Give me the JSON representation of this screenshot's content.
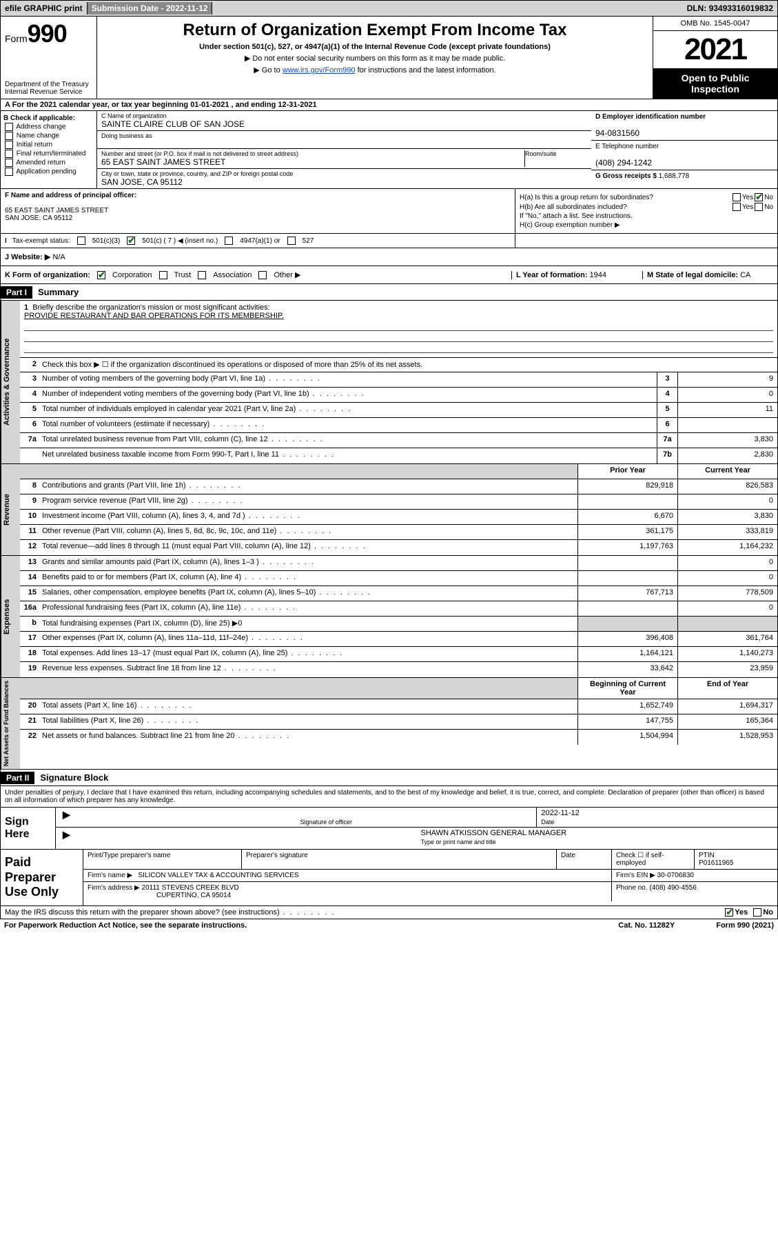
{
  "topbar": {
    "efile": "efile GRAPHIC print",
    "sub_label": "Submission Date - ",
    "sub_date": "2022-11-12",
    "dln_label": "DLN: ",
    "dln": "93493316019832"
  },
  "header": {
    "form_prefix": "Form",
    "form_num": "990",
    "dept": "Department of the Treasury\nInternal Revenue Service",
    "title": "Return of Organization Exempt From Income Tax",
    "sub1": "Under section 501(c), 527, or 4947(a)(1) of the Internal Revenue Code (except private foundations)",
    "sub2": "▶ Do not enter social security numbers on this form as it may be made public.",
    "sub3_pre": "▶ Go to ",
    "sub3_link": "www.irs.gov/Form990",
    "sub3_post": " for instructions and the latest information.",
    "omb": "OMB No. 1545-0047",
    "year": "2021",
    "otp": "Open to Public Inspection"
  },
  "line_a": "A For the 2021 calendar year, or tax year beginning 01-01-2021   , and ending 12-31-2021",
  "col_b": {
    "title": "B Check if applicable:",
    "items": [
      "Address change",
      "Name change",
      "Initial return",
      "Final return/terminated",
      "Amended return",
      "Application pending"
    ]
  },
  "box_c": {
    "label": "C Name of organization",
    "name": "SAINTE CLAIRE CLUB OF SAN JOSE",
    "dba_label": "Doing business as",
    "addr_label": "Number and street (or P.O. box if mail is not delivered to street address)",
    "room_label": "Room/suite",
    "addr": "65 EAST SAINT JAMES STREET",
    "city_label": "City or town, state or province, country, and ZIP or foreign postal code",
    "city": "SAN JOSE, CA  95112"
  },
  "box_d": {
    "label": "D Employer identification number",
    "val": "94-0831560"
  },
  "box_e": {
    "label": "E Telephone number",
    "val": "(408) 294-1242"
  },
  "box_g": {
    "label": "G Gross receipts $ ",
    "val": "1,688,778"
  },
  "box_f": {
    "label": "F Name and address of principal officer:",
    "line1": "65 EAST SAINT JAMES STREET",
    "line2": "SAN JOSE, CA  95112"
  },
  "box_h": {
    "a_label": "H(a)  Is this a group return for subordinates?",
    "b_label": "H(b)  Are all subordinates included?",
    "b_note": "If \"No,\" attach a list. See instructions.",
    "c_label": "H(c)  Group exemption number ▶",
    "yes": "Yes",
    "no": "No"
  },
  "row_i": {
    "label": "Tax-exempt status:",
    "opts": [
      "501(c)(3)",
      "501(c) ( 7 ) ◀ (insert no.)",
      "4947(a)(1) or",
      "527"
    ]
  },
  "row_j": {
    "label": "J   Website: ▶",
    "val": "N/A"
  },
  "row_k": {
    "label": "K Form of organization:",
    "opts": [
      "Corporation",
      "Trust",
      "Association",
      "Other ▶"
    ]
  },
  "row_l": {
    "label": "L Year of formation: ",
    "val": "1944"
  },
  "row_m": {
    "label": "M State of legal domicile: ",
    "val": "CA"
  },
  "part1": {
    "hdr": "Part I",
    "title": "Summary"
  },
  "briefly": {
    "num": "1",
    "label": "Briefly describe the organization's mission or most significant activities:",
    "text": "PROVIDE RESTAURANT AND BAR OPERATIONS FOR ITS MEMBERSHIP."
  },
  "line2": "Check this box ▶ ☐  if the organization discontinued its operations or disposed of more than 25% of its net assets.",
  "act_rows": [
    {
      "n": "3",
      "d": "Number of voting members of the governing body (Part VI, line 1a)",
      "box": "3",
      "v": "9"
    },
    {
      "n": "4",
      "d": "Number of independent voting members of the governing body (Part VI, line 1b)",
      "box": "4",
      "v": "0"
    },
    {
      "n": "5",
      "d": "Total number of individuals employed in calendar year 2021 (Part V, line 2a)",
      "box": "5",
      "v": "11"
    },
    {
      "n": "6",
      "d": "Total number of volunteers (estimate if necessary)",
      "box": "6",
      "v": ""
    },
    {
      "n": "7a",
      "d": "Total unrelated business revenue from Part VIII, column (C), line 12",
      "box": "7a",
      "v": "3,830"
    },
    {
      "n": "",
      "d": "Net unrelated business taxable income from Form 990-T, Part I, line 11",
      "box": "7b",
      "v": "2,830"
    }
  ],
  "col_hdrs": {
    "prior": "Prior Year",
    "current": "Current Year",
    "boy": "Beginning of Current Year",
    "eoy": "End of Year"
  },
  "rev_rows": [
    {
      "n": "8",
      "d": "Contributions and grants (Part VIII, line 1h)",
      "p": "829,918",
      "c": "826,583"
    },
    {
      "n": "9",
      "d": "Program service revenue (Part VIII, line 2g)",
      "p": "",
      "c": "0"
    },
    {
      "n": "10",
      "d": "Investment income (Part VIII, column (A), lines 3, 4, and 7d )",
      "p": "6,670",
      "c": "3,830"
    },
    {
      "n": "11",
      "d": "Other revenue (Part VIII, column (A), lines 5, 6d, 8c, 9c, 10c, and 11e)",
      "p": "361,175",
      "c": "333,819"
    },
    {
      "n": "12",
      "d": "Total revenue—add lines 8 through 11 (must equal Part VIII, column (A), line 12)",
      "p": "1,197,763",
      "c": "1,164,232"
    }
  ],
  "exp_rows": [
    {
      "n": "13",
      "d": "Grants and similar amounts paid (Part IX, column (A), lines 1–3 )",
      "p": "",
      "c": "0"
    },
    {
      "n": "14",
      "d": "Benefits paid to or for members (Part IX, column (A), line 4)",
      "p": "",
      "c": "0"
    },
    {
      "n": "15",
      "d": "Salaries, other compensation, employee benefits (Part IX, column (A), lines 5–10)",
      "p": "767,713",
      "c": "778,509"
    },
    {
      "n": "16a",
      "d": "Professional fundraising fees (Part IX, column (A), line 11e)",
      "p": "",
      "c": "0"
    },
    {
      "n": "b",
      "d": "Total fundraising expenses (Part IX, column (D), line 25) ▶0",
      "p": null,
      "c": null
    },
    {
      "n": "17",
      "d": "Other expenses (Part IX, column (A), lines 11a–11d, 11f–24e)",
      "p": "396,408",
      "c": "361,764"
    },
    {
      "n": "18",
      "d": "Total expenses. Add lines 13–17 (must equal Part IX, column (A), line 25)",
      "p": "1,164,121",
      "c": "1,140,273"
    },
    {
      "n": "19",
      "d": "Revenue less expenses. Subtract line 18 from line 12",
      "p": "33,642",
      "c": "23,959"
    }
  ],
  "net_rows": [
    {
      "n": "20",
      "d": "Total assets (Part X, line 16)",
      "p": "1,652,749",
      "c": "1,694,317"
    },
    {
      "n": "21",
      "d": "Total liabilities (Part X, line 26)",
      "p": "147,755",
      "c": "165,364"
    },
    {
      "n": "22",
      "d": "Net assets or fund balances. Subtract line 21 from line 20",
      "p": "1,504,994",
      "c": "1,528,953"
    }
  ],
  "vtabs": {
    "act": "Activities & Governance",
    "rev": "Revenue",
    "exp": "Expenses",
    "net": "Net Assets or Fund Balances"
  },
  "part2": {
    "hdr": "Part II",
    "title": "Signature Block"
  },
  "sig": {
    "decl": "Under penalties of perjury, I declare that I have examined this return, including accompanying schedules and statements, and to the best of my knowledge and belief, it is true, correct, and complete. Declaration of preparer (other than officer) is based on all information of which preparer has any knowledge.",
    "sign_here": "Sign Here",
    "sig_officer": "Signature of officer",
    "date": "Date",
    "date_val": "2022-11-12",
    "name_title": "SHAWN ATKISSON  GENERAL MANAGER",
    "type_name": "Type or print name and title"
  },
  "prep": {
    "title": "Paid Preparer Use Only",
    "print_label": "Print/Type preparer's name",
    "sig_label": "Preparer's signature",
    "date_label": "Date",
    "check_label": "Check ☐ if self-employed",
    "ptin_label": "PTIN",
    "ptin": "P01611965",
    "firm_name_label": "Firm's name   ▶",
    "firm_name": "SILICON VALLEY TAX & ACCOUNTING SERVICES",
    "ein_label": "Firm's EIN ▶",
    "ein": "30-0706830",
    "firm_addr_label": "Firm's address ▶",
    "firm_addr1": "20111 STEVENS CREEK BLVD",
    "firm_addr2": "CUPERTINO, CA  95014",
    "phone_label": "Phone no. ",
    "phone": "(408) 490-4556"
  },
  "discuss": {
    "q": "May the IRS discuss this return with the preparer shown above? (see instructions)",
    "yes": "Yes",
    "no": "No"
  },
  "footer": {
    "pra": "For Paperwork Reduction Act Notice, see the separate instructions.",
    "cat": "Cat. No. 11282Y",
    "form": "Form 990 (2021)"
  },
  "colors": {
    "link": "#1a4aa8",
    "check": "#1a6b1a",
    "shade": "#d5d5d5",
    "darkbar": "#8a8a8a"
  }
}
